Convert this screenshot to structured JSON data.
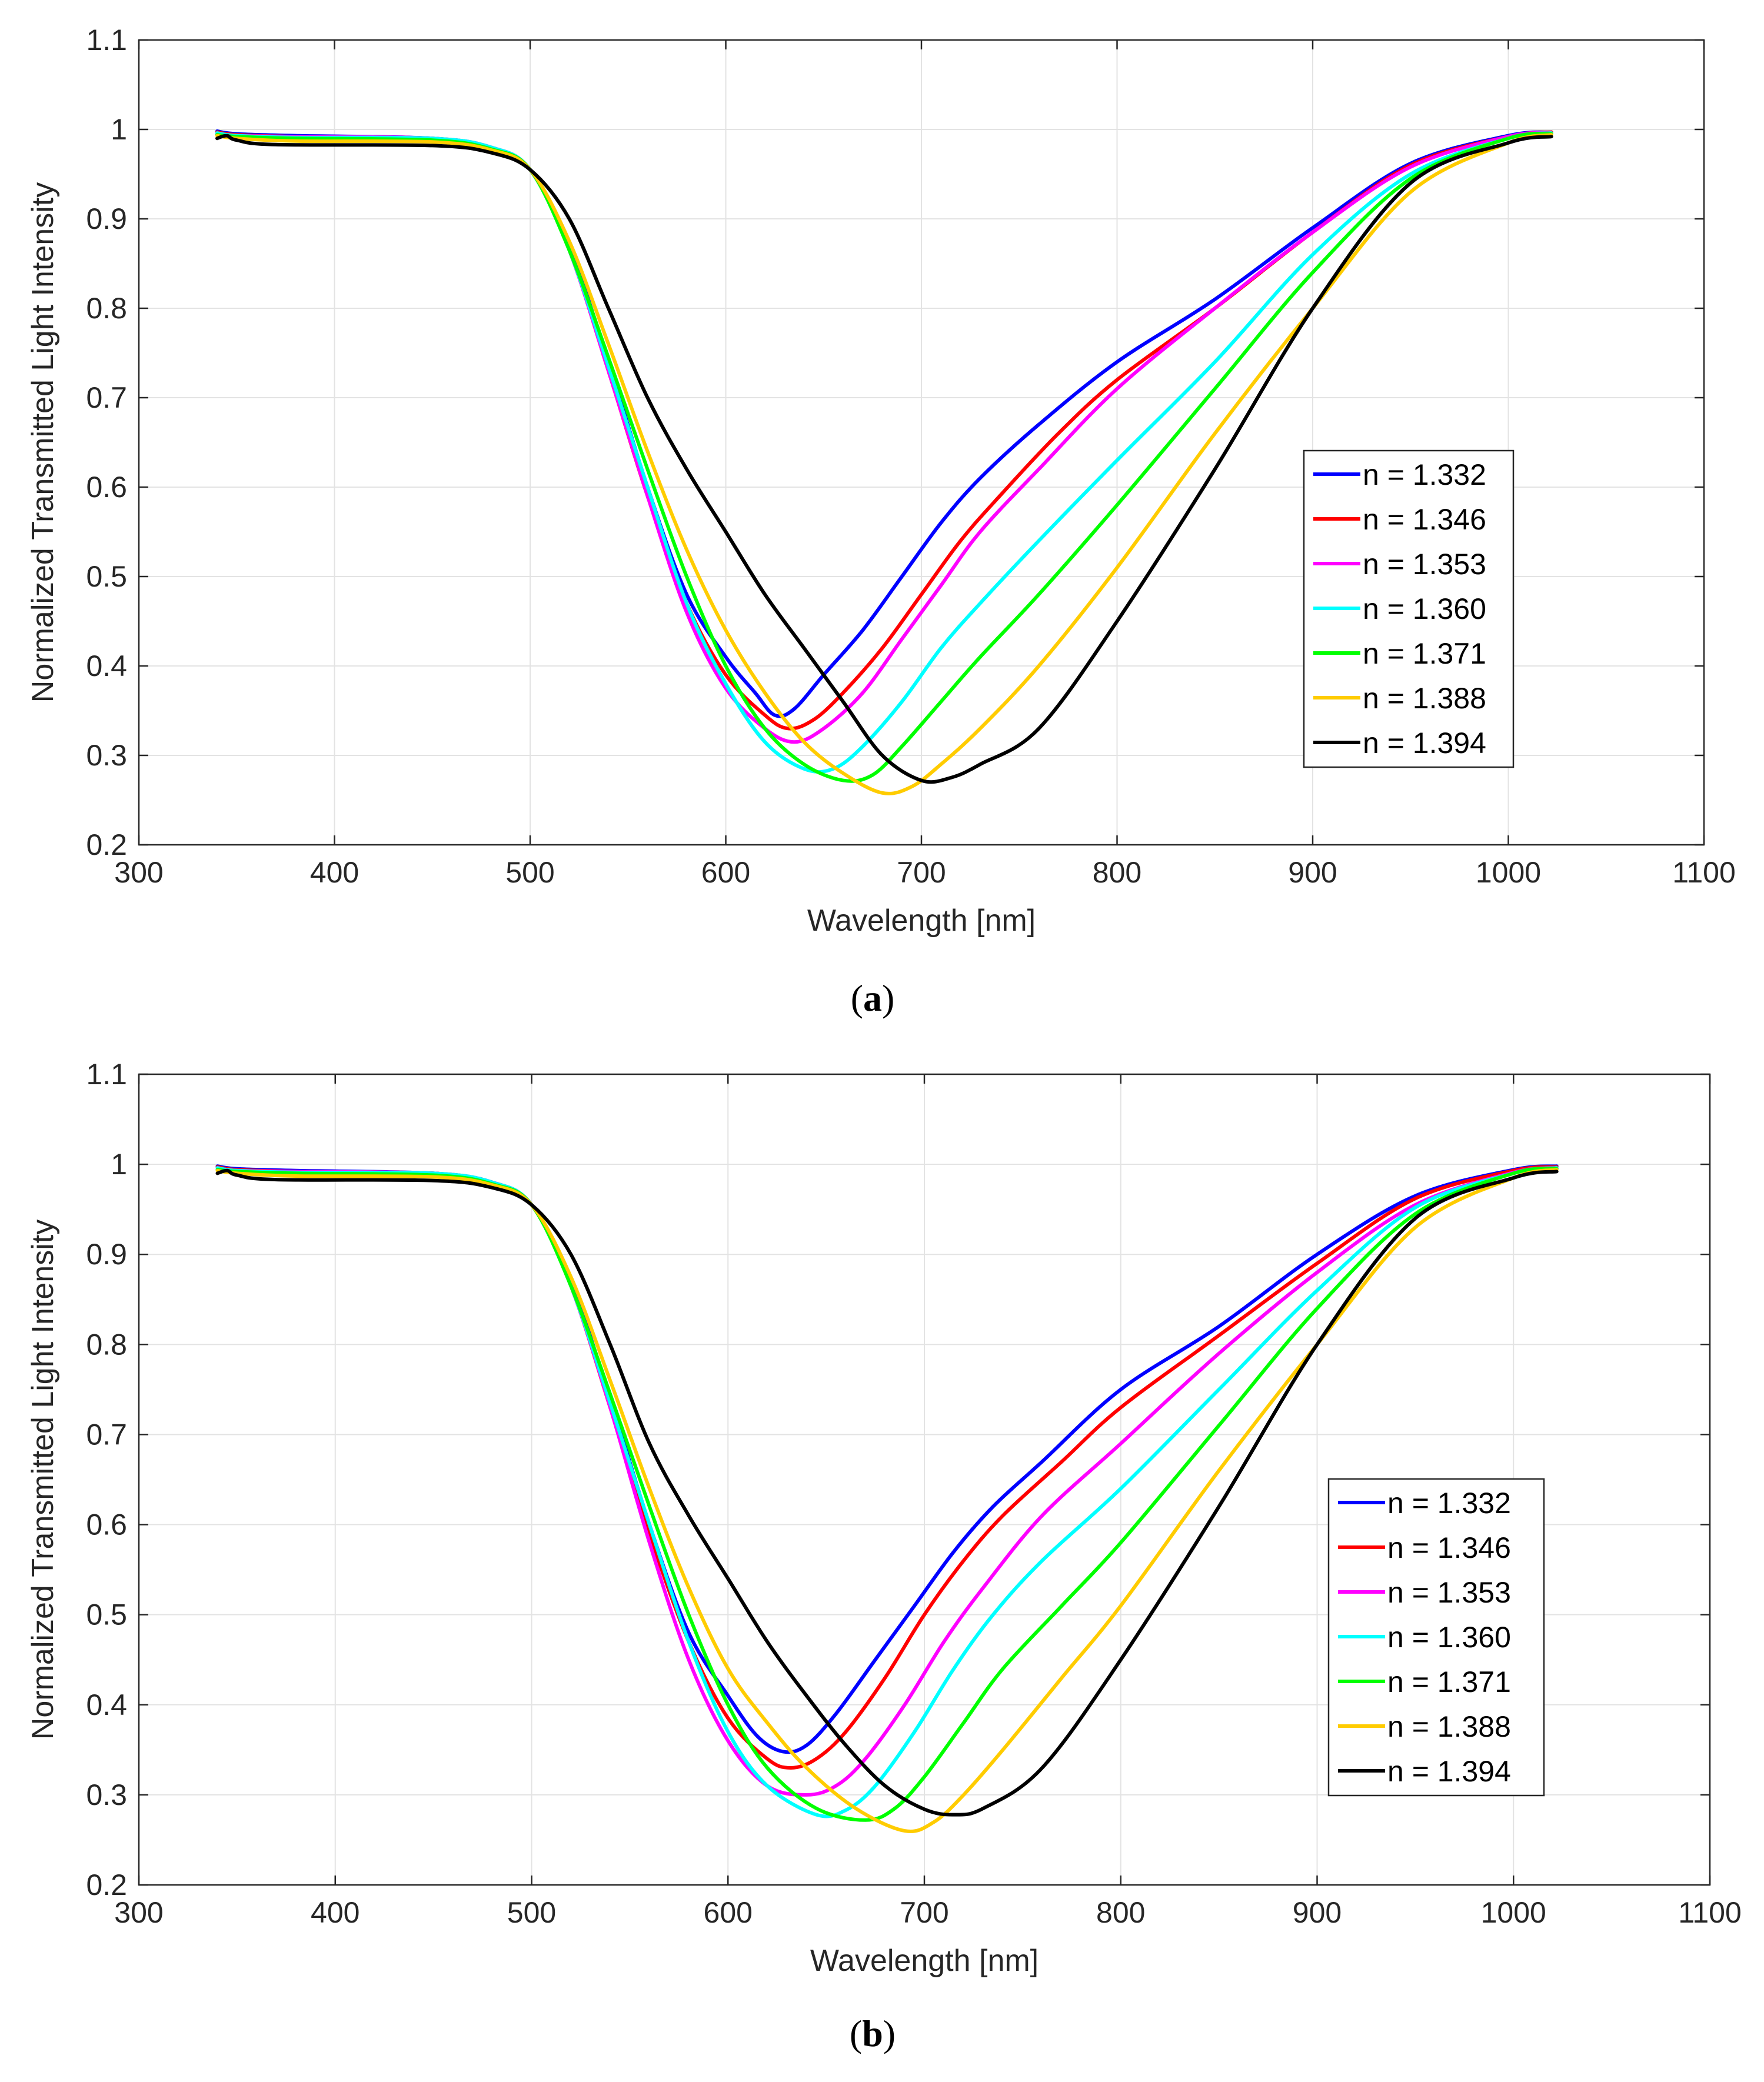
{
  "chart_data": [
    {
      "panel_label": "a",
      "type": "line",
      "xlabel": "Wavelength [nm]",
      "ylabel": "Normalized Transmitted Light Intensity",
      "xlim": [
        300,
        1100
      ],
      "ylim": [
        0.2,
        1.1
      ],
      "xticks": [
        "300",
        "400",
        "500",
        "600",
        "700",
        "800",
        "900",
        "1000",
        "1100"
      ],
      "yticks": [
        "0.2",
        "0.3",
        "0.4",
        "0.5",
        "0.6",
        "0.7",
        "0.8",
        "0.9",
        "1",
        "1.1"
      ],
      "grid": true,
      "legend_position": "right-center",
      "series": [
        {
          "name": "n = 1.332",
          "color": "#0000ff",
          "x": [
            340,
            350,
            380,
            450,
            480,
            500,
            520,
            540,
            560,
            580,
            600,
            615,
            625,
            635,
            650,
            670,
            690,
            710,
            730,
            760,
            800,
            850,
            900,
            950,
            1000,
            1022
          ],
          "y": [
            0.998,
            0.995,
            0.993,
            0.99,
            0.98,
            0.955,
            0.87,
            0.74,
            0.6,
            0.48,
            0.41,
            0.37,
            0.345,
            0.352,
            0.39,
            0.44,
            0.5,
            0.56,
            0.61,
            0.67,
            0.74,
            0.81,
            0.89,
            0.962,
            0.993,
            0.997
          ]
        },
        {
          "name": "n = 1.346",
          "color": "#ff0000",
          "x": [
            340,
            350,
            380,
            450,
            480,
            500,
            520,
            540,
            560,
            580,
            600,
            620,
            632,
            645,
            660,
            680,
            700,
            720,
            740,
            770,
            800,
            850,
            900,
            950,
            1000,
            1022
          ],
          "y": [
            0.997,
            0.994,
            0.992,
            0.99,
            0.98,
            0.955,
            0.865,
            0.73,
            0.59,
            0.47,
            0.39,
            0.345,
            0.33,
            0.34,
            0.37,
            0.42,
            0.48,
            0.54,
            0.59,
            0.66,
            0.72,
            0.8,
            0.885,
            0.96,
            0.992,
            0.997
          ]
        },
        {
          "name": "n = 1.353",
          "color": "#ff00ff",
          "x": [
            340,
            350,
            380,
            450,
            480,
            500,
            520,
            540,
            560,
            580,
            600,
            620,
            635,
            650,
            670,
            690,
            710,
            730,
            760,
            800,
            850,
            900,
            950,
            1000,
            1022
          ],
          "y": [
            0.995,
            0.993,
            0.992,
            0.99,
            0.98,
            0.955,
            0.865,
            0.73,
            0.59,
            0.46,
            0.375,
            0.33,
            0.315,
            0.33,
            0.37,
            0.43,
            0.49,
            0.55,
            0.62,
            0.71,
            0.8,
            0.885,
            0.958,
            0.992,
            0.996
          ]
        },
        {
          "name": "n = 1.360",
          "color": "#00ffff",
          "x": [
            340,
            350,
            380,
            450,
            480,
            500,
            520,
            540,
            560,
            580,
            600,
            620,
            640,
            655,
            670,
            690,
            710,
            730,
            760,
            800,
            850,
            900,
            950,
            1000,
            1022
          ],
          "y": [
            0.996,
            0.993,
            0.991,
            0.99,
            0.98,
            0.955,
            0.865,
            0.735,
            0.6,
            0.47,
            0.38,
            0.315,
            0.285,
            0.285,
            0.31,
            0.36,
            0.42,
            0.47,
            0.54,
            0.63,
            0.74,
            0.86,
            0.95,
            0.99,
            0.996
          ]
        },
        {
          "name": "n = 1.371",
          "color": "#00ff00",
          "x": [
            340,
            350,
            380,
            450,
            480,
            500,
            520,
            540,
            560,
            580,
            600,
            620,
            640,
            660,
            675,
            690,
            710,
            730,
            760,
            800,
            850,
            900,
            950,
            1000,
            1022
          ],
          "y": [
            0.994,
            0.992,
            0.99,
            0.988,
            0.978,
            0.955,
            0.865,
            0.745,
            0.62,
            0.5,
            0.4,
            0.33,
            0.29,
            0.272,
            0.278,
            0.31,
            0.36,
            0.41,
            0.48,
            0.58,
            0.71,
            0.84,
            0.945,
            0.99,
            0.995
          ]
        },
        {
          "name": "n = 1.388",
          "color": "#ffcc00",
          "x": [
            340,
            350,
            380,
            450,
            480,
            500,
            520,
            540,
            560,
            580,
            600,
            620,
            640,
            660,
            680,
            695,
            710,
            730,
            760,
            800,
            850,
            900,
            950,
            1000,
            1022
          ],
          "y": [
            0.993,
            0.99,
            0.987,
            0.986,
            0.977,
            0.955,
            0.875,
            0.76,
            0.64,
            0.53,
            0.44,
            0.37,
            0.315,
            0.28,
            0.258,
            0.265,
            0.29,
            0.33,
            0.4,
            0.51,
            0.66,
            0.8,
            0.93,
            0.985,
            0.994
          ]
        },
        {
          "name": "n = 1.394",
          "color": "#000000",
          "x": [
            340,
            345,
            350,
            370,
            450,
            480,
            500,
            520,
            540,
            560,
            580,
            600,
            620,
            640,
            660,
            680,
            700,
            715,
            730,
            760,
            800,
            850,
            900,
            950,
            1000,
            1022
          ],
          "y": [
            0.99,
            0.993,
            0.988,
            0.983,
            0.982,
            0.974,
            0.955,
            0.9,
            0.8,
            0.7,
            0.62,
            0.55,
            0.48,
            0.42,
            0.36,
            0.3,
            0.272,
            0.275,
            0.29,
            0.33,
            0.45,
            0.62,
            0.8,
            0.94,
            0.985,
            0.992
          ]
        }
      ]
    },
    {
      "panel_label": "b",
      "type": "line",
      "xlabel": "Wavelength [nm]",
      "ylabel": "Normalized Transmitted Light Intensity",
      "xlim": [
        300,
        1100
      ],
      "ylim": [
        0.2,
        1.1
      ],
      "xticks": [
        "300",
        "400",
        "500",
        "600",
        "700",
        "800",
        "900",
        "1000",
        "1100"
      ],
      "yticks": [
        "0.2",
        "0.3",
        "0.4",
        "0.5",
        "0.6",
        "0.7",
        "0.8",
        "0.9",
        "1",
        "1.1"
      ],
      "grid": true,
      "legend_position": "right-center",
      "series": [
        {
          "name": "n = 1.332",
          "color": "#0000ff",
          "x": [
            340,
            350,
            380,
            450,
            480,
            500,
            520,
            540,
            560,
            580,
            600,
            615,
            628,
            640,
            655,
            675,
            695,
            715,
            735,
            760,
            800,
            850,
            900,
            950,
            1000,
            1022
          ],
          "y": [
            0.998,
            0.995,
            0.993,
            0.99,
            0.98,
            0.955,
            0.87,
            0.74,
            0.6,
            0.48,
            0.41,
            0.365,
            0.348,
            0.355,
            0.39,
            0.45,
            0.51,
            0.57,
            0.62,
            0.67,
            0.75,
            0.82,
            0.9,
            0.965,
            0.994,
            0.998
          ]
        },
        {
          "name": "n = 1.346",
          "color": "#ff0000",
          "x": [
            340,
            350,
            380,
            450,
            480,
            500,
            520,
            540,
            560,
            580,
            600,
            620,
            632,
            645,
            660,
            680,
            700,
            720,
            740,
            770,
            800,
            850,
            900,
            950,
            1000,
            1022
          ],
          "y": [
            0.997,
            0.994,
            0.992,
            0.99,
            0.98,
            0.955,
            0.865,
            0.73,
            0.59,
            0.47,
            0.385,
            0.34,
            0.33,
            0.34,
            0.37,
            0.43,
            0.5,
            0.56,
            0.61,
            0.67,
            0.73,
            0.81,
            0.89,
            0.962,
            0.993,
            0.997
          ]
        },
        {
          "name": "n = 1.353",
          "color": "#ff00ff",
          "x": [
            340,
            350,
            380,
            450,
            480,
            500,
            520,
            540,
            560,
            580,
            600,
            620,
            640,
            655,
            670,
            690,
            710,
            730,
            760,
            800,
            850,
            900,
            950,
            1000,
            1022
          ],
          "y": [
            0.996,
            0.993,
            0.992,
            0.99,
            0.98,
            0.955,
            0.865,
            0.73,
            0.58,
            0.45,
            0.36,
            0.31,
            0.3,
            0.31,
            0.34,
            0.4,
            0.47,
            0.53,
            0.61,
            0.69,
            0.79,
            0.88,
            0.955,
            0.991,
            0.996
          ]
        },
        {
          "name": "n = 1.360",
          "color": "#00ffff",
          "x": [
            340,
            350,
            380,
            450,
            480,
            500,
            520,
            540,
            560,
            580,
            600,
            620,
            645,
            660,
            675,
            695,
            715,
            735,
            760,
            800,
            850,
            900,
            950,
            1000,
            1022
          ],
          "y": [
            0.996,
            0.993,
            0.991,
            0.99,
            0.98,
            0.955,
            0.865,
            0.735,
            0.6,
            0.47,
            0.37,
            0.31,
            0.278,
            0.283,
            0.31,
            0.37,
            0.44,
            0.5,
            0.56,
            0.64,
            0.75,
            0.86,
            0.952,
            0.99,
            0.996
          ]
        },
        {
          "name": "n = 1.371",
          "color": "#00ff00",
          "x": [
            340,
            350,
            380,
            450,
            480,
            500,
            520,
            540,
            560,
            580,
            600,
            620,
            645,
            670,
            685,
            700,
            720,
            740,
            770,
            800,
            850,
            900,
            950,
            1000,
            1022
          ],
          "y": [
            0.994,
            0.992,
            0.99,
            0.988,
            0.978,
            0.955,
            0.865,
            0.745,
            0.62,
            0.5,
            0.4,
            0.33,
            0.285,
            0.272,
            0.285,
            0.32,
            0.38,
            0.44,
            0.51,
            0.58,
            0.71,
            0.84,
            0.945,
            0.99,
            0.995
          ]
        },
        {
          "name": "n = 1.388",
          "color": "#ffcc00",
          "x": [
            340,
            350,
            380,
            450,
            480,
            500,
            520,
            540,
            560,
            580,
            600,
            620,
            640,
            665,
            690,
            705,
            720,
            740,
            770,
            800,
            850,
            900,
            950,
            1000,
            1022
          ],
          "y": [
            0.993,
            0.99,
            0.987,
            0.986,
            0.977,
            0.955,
            0.875,
            0.76,
            0.64,
            0.53,
            0.44,
            0.38,
            0.33,
            0.285,
            0.26,
            0.27,
            0.3,
            0.35,
            0.43,
            0.51,
            0.66,
            0.8,
            0.93,
            0.985,
            0.994
          ]
        },
        {
          "name": "n = 1.394",
          "color": "#000000",
          "x": [
            340,
            345,
            350,
            370,
            450,
            480,
            500,
            520,
            540,
            560,
            580,
            600,
            620,
            640,
            660,
            680,
            700,
            715,
            730,
            760,
            800,
            850,
            900,
            950,
            1000,
            1022
          ],
          "y": [
            0.99,
            0.993,
            0.988,
            0.983,
            0.982,
            0.974,
            0.955,
            0.9,
            0.8,
            0.69,
            0.61,
            0.54,
            0.47,
            0.41,
            0.355,
            0.31,
            0.284,
            0.278,
            0.285,
            0.33,
            0.45,
            0.62,
            0.8,
            0.94,
            0.985,
            0.992
          ]
        }
      ]
    }
  ],
  "captions": [
    "a",
    "b"
  ]
}
